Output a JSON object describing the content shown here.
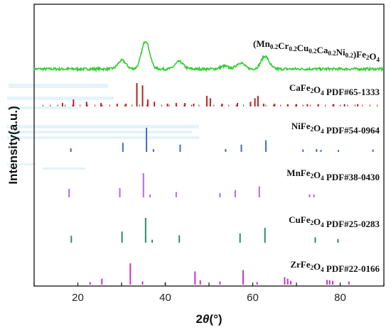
{
  "chart_data": {
    "type": "line",
    "xlabel_prefix": "2",
    "xlabel_theta": "θ",
    "xlabel_unit": "(°)",
    "ylabel": "Intensity(a.u.)",
    "xlim": [
      10,
      90
    ],
    "x_ticks": [
      20,
      40,
      60,
      80
    ],
    "series": [
      {
        "id": "hea",
        "label_parts": [
          {
            "t": "(Mn"
          },
          {
            "t": "0.2",
            "sub": true
          },
          {
            "t": "Cr"
          },
          {
            "t": "0.2",
            "sub": true
          },
          {
            "t": "Cu"
          },
          {
            "t": "0.2",
            "sub": true
          },
          {
            "t": "Ca"
          },
          {
            "t": "0.2",
            "sub": true
          },
          {
            "t": "Ni"
          },
          {
            "t": "0.2",
            "sub": true
          },
          {
            "t": ")Fe"
          },
          {
            "t": "2",
            "sub": true
          },
          {
            "t": "O"
          },
          {
            "t": "4",
            "sub": true
          }
        ],
        "color": "#33cc33",
        "kind": "xrd",
        "peaks": [
          {
            "x": 30.1,
            "h": 0.3
          },
          {
            "x": 35.5,
            "h": 1.0
          },
          {
            "x": 43.2,
            "h": 0.26
          },
          {
            "x": 53.5,
            "h": 0.1
          },
          {
            "x": 57.2,
            "h": 0.22
          },
          {
            "x": 62.8,
            "h": 0.45
          }
        ]
      },
      {
        "id": "cafe",
        "label_parts": [
          {
            "t": "CaFe"
          },
          {
            "t": "2",
            "sub": true
          },
          {
            "t": "O"
          },
          {
            "t": "4",
            "sub": true
          },
          {
            "t": " PDF#65-1333"
          }
        ],
        "color": "#b22222",
        "kind": "sticks",
        "peaks": [
          {
            "x": 16.5,
            "h": 0.15
          },
          {
            "x": 19.0,
            "h": 0.3
          },
          {
            "x": 22.0,
            "h": 0.2
          },
          {
            "x": 25.3,
            "h": 0.15
          },
          {
            "x": 29.0,
            "h": 0.12
          },
          {
            "x": 31.0,
            "h": 0.12
          },
          {
            "x": 33.5,
            "h": 1.0
          },
          {
            "x": 34.8,
            "h": 0.9
          },
          {
            "x": 36.0,
            "h": 0.3
          },
          {
            "x": 37.5,
            "h": 0.2
          },
          {
            "x": 40.5,
            "h": 0.12
          },
          {
            "x": 42.5,
            "h": 0.15
          },
          {
            "x": 44.5,
            "h": 0.15
          },
          {
            "x": 46.5,
            "h": 0.12
          },
          {
            "x": 49.5,
            "h": 0.45
          },
          {
            "x": 50.3,
            "h": 0.35
          },
          {
            "x": 53.0,
            "h": 0.12
          },
          {
            "x": 56.5,
            "h": 0.15
          },
          {
            "x": 59.5,
            "h": 0.2
          },
          {
            "x": 60.5,
            "h": 0.35
          },
          {
            "x": 61.2,
            "h": 0.45
          },
          {
            "x": 62.5,
            "h": 0.12
          },
          {
            "x": 65.0,
            "h": 0.12
          },
          {
            "x": 68.0,
            "h": 0.1
          },
          {
            "x": 70.0,
            "h": 0.1
          },
          {
            "x": 72.5,
            "h": 0.1
          },
          {
            "x": 75.0,
            "h": 0.1
          },
          {
            "x": 78.5,
            "h": 0.1
          },
          {
            "x": 81.0,
            "h": 0.1
          },
          {
            "x": 84.0,
            "h": 0.1
          }
        ]
      },
      {
        "id": "nife",
        "label_parts": [
          {
            "t": "NiFe"
          },
          {
            "t": "2",
            "sub": true
          },
          {
            "t": "O"
          },
          {
            "t": "4",
            "sub": true
          },
          {
            "t": " PDF#54-0964"
          }
        ],
        "color": "#3a6fc4",
        "kind": "sticks",
        "peaks": [
          {
            "x": 18.4,
            "h": 0.15
          },
          {
            "x": 30.3,
            "h": 0.38
          },
          {
            "x": 35.7,
            "h": 1.0
          },
          {
            "x": 37.3,
            "h": 0.12
          },
          {
            "x": 43.4,
            "h": 0.3
          },
          {
            "x": 53.8,
            "h": 0.12
          },
          {
            "x": 57.4,
            "h": 0.3
          },
          {
            "x": 63.0,
            "h": 0.48
          },
          {
            "x": 71.5,
            "h": 0.1
          },
          {
            "x": 74.6,
            "h": 0.12
          },
          {
            "x": 75.6,
            "h": 0.08
          },
          {
            "x": 79.6,
            "h": 0.08
          },
          {
            "x": 87.5,
            "h": 0.1
          }
        ]
      },
      {
        "id": "mnfe",
        "label_parts": [
          {
            "t": "MnFe"
          },
          {
            "t": "2",
            "sub": true
          },
          {
            "t": "O"
          },
          {
            "t": "4",
            "sub": true
          },
          {
            "t": " PDF#38-0430"
          }
        ],
        "color": "#b36ae2",
        "kind": "sticks",
        "peaks": [
          {
            "x": 18.0,
            "h": 0.35
          },
          {
            "x": 29.6,
            "h": 0.38
          },
          {
            "x": 35.0,
            "h": 1.0
          },
          {
            "x": 36.5,
            "h": 0.12
          },
          {
            "x": 42.5,
            "h": 0.22
          },
          {
            "x": 52.5,
            "h": 0.18
          },
          {
            "x": 56.0,
            "h": 0.3
          },
          {
            "x": 61.5,
            "h": 0.45
          },
          {
            "x": 73.0,
            "h": 0.12
          },
          {
            "x": 74.0,
            "h": 0.12
          }
        ]
      },
      {
        "id": "cufe",
        "label_parts": [
          {
            "t": "CuFe"
          },
          {
            "t": "2",
            "sub": true
          },
          {
            "t": "O"
          },
          {
            "t": "4",
            "sub": true
          },
          {
            "t": " PDF#25-0283"
          }
        ],
        "color": "#2e8b6a",
        "kind": "sticks",
        "peaks": [
          {
            "x": 18.5,
            "h": 0.28
          },
          {
            "x": 30.1,
            "h": 0.45
          },
          {
            "x": 35.5,
            "h": 1.0
          },
          {
            "x": 37.0,
            "h": 0.12
          },
          {
            "x": 43.2,
            "h": 0.3
          },
          {
            "x": 57.1,
            "h": 0.38
          },
          {
            "x": 62.8,
            "h": 0.6
          },
          {
            "x": 74.3,
            "h": 0.22
          },
          {
            "x": 79.5,
            "h": 0.15
          }
        ]
      },
      {
        "id": "zrfe",
        "label_parts": [
          {
            "t": "ZrFe"
          },
          {
            "t": "2",
            "sub": true
          },
          {
            "t": "O"
          },
          {
            "t": "4",
            "sub": true
          },
          {
            "t": " PDF#22-0166"
          }
        ],
        "color": "#cc33cc",
        "kind": "sticks",
        "peaks": [
          {
            "x": 22.8,
            "h": 0.12
          },
          {
            "x": 25.5,
            "h": 0.28
          },
          {
            "x": 32.0,
            "h": 1.0
          },
          {
            "x": 34.8,
            "h": 0.15
          },
          {
            "x": 40.0,
            "h": 0.1
          },
          {
            "x": 46.8,
            "h": 0.62
          },
          {
            "x": 48.0,
            "h": 0.2
          },
          {
            "x": 52.5,
            "h": 0.15
          },
          {
            "x": 57.8,
            "h": 0.68
          },
          {
            "x": 61.0,
            "h": 0.12
          },
          {
            "x": 67.3,
            "h": 0.35
          },
          {
            "x": 68.0,
            "h": 0.28
          },
          {
            "x": 68.7,
            "h": 0.18
          },
          {
            "x": 77.0,
            "h": 0.22
          },
          {
            "x": 77.6,
            "h": 0.2
          },
          {
            "x": 78.3,
            "h": 0.18
          },
          {
            "x": 82.0,
            "h": 0.15
          }
        ]
      }
    ]
  }
}
